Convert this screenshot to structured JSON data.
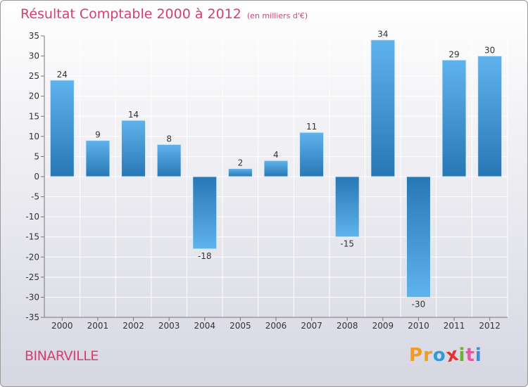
{
  "title": {
    "main": "Résultat Comptable 2000 à 2012",
    "unit": "(en milliers d'€)"
  },
  "commune": "BINARVILLE",
  "logo": {
    "letters": [
      "P",
      "r",
      "o",
      "x",
      "i",
      "t",
      "i"
    ],
    "colors": [
      "#f39a1f",
      "#f39a1f",
      "#2f9ad9",
      "#e2322b",
      "#6ab12e",
      "#e45aa2",
      "#3a8fd6"
    ]
  },
  "colors": {
    "bar_light": "#5aaee8",
    "bar_dark": "#2a7ab8",
    "axis": "#777777",
    "grid": "#ffffff",
    "text": "#333333"
  },
  "chart_data": {
    "type": "bar",
    "title": "Résultat Comptable 2000 à 2012",
    "categories": [
      "2000",
      "2001",
      "2002",
      "2003",
      "2004",
      "2005",
      "2006",
      "2007",
      "2008",
      "2009",
      "2010",
      "2011",
      "2012"
    ],
    "values": [
      24,
      9,
      14,
      8,
      -18,
      2,
      4,
      11,
      -15,
      34,
      -30,
      29,
      30
    ],
    "value_labels": [
      "24",
      "9",
      "14",
      "8",
      "-18",
      "2",
      "4",
      "11",
      "-15",
      "34",
      "-30",
      "29",
      "30"
    ],
    "ylim": [
      -35,
      35
    ],
    "yticks": [
      35,
      30,
      25,
      20,
      15,
      10,
      5,
      0,
      -5,
      -10,
      -15,
      -20,
      -25,
      -30,
      -35
    ],
    "ytick_labels": [
      "35",
      "30",
      "25",
      "20",
      "15",
      "10",
      "5",
      "0",
      "-5",
      "-10",
      "-15",
      "-20",
      "-25",
      "-30",
      "-35"
    ],
    "grid": true
  }
}
